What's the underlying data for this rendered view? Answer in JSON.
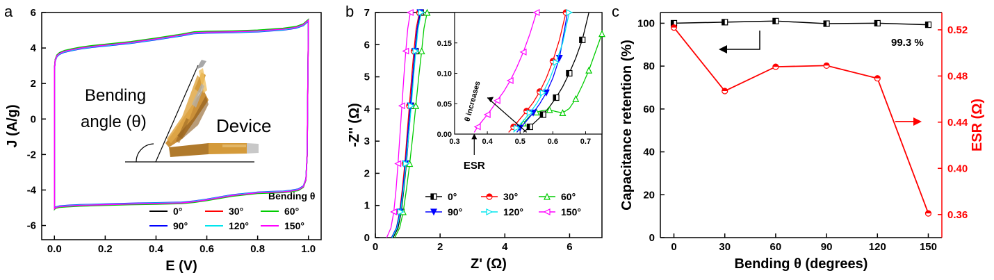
{
  "chart_data": [
    {
      "panel": "a",
      "type": "line",
      "xlabel": "E (V)",
      "ylabel": "J (A/g)",
      "xlim": [
        -0.05,
        1.05
      ],
      "ylim": [
        -6.8,
        6
      ],
      "xticks": [
        0.0,
        0.2,
        0.4,
        0.6,
        0.8,
        1.0
      ],
      "yticks": [
        -6,
        -4,
        -2,
        0,
        2,
        4,
        6
      ],
      "legend_title": "Bending θ",
      "legend_position": "bottom-right",
      "annotations": [
        "Bending",
        "angle (θ)",
        "Device"
      ],
      "cv_upper": {
        "x": [
          0.0,
          0.003,
          0.01,
          0.02,
          0.04,
          0.07,
          0.1,
          0.15,
          0.2,
          0.3,
          0.4,
          0.5,
          0.55,
          0.6,
          0.7,
          0.8,
          0.9,
          0.95,
          0.98,
          1.0
        ],
        "y": [
          2.8,
          3.3,
          3.55,
          3.68,
          3.8,
          3.9,
          3.98,
          4.08,
          4.15,
          4.3,
          4.5,
          4.72,
          4.85,
          4.88,
          4.9,
          4.95,
          5.05,
          5.15,
          5.3,
          5.55
        ]
      },
      "cv_lower": {
        "x": [
          1.0,
          0.995,
          0.99,
          0.98,
          0.96,
          0.93,
          0.9,
          0.85,
          0.8,
          0.7,
          0.6,
          0.55,
          0.5,
          0.4,
          0.3,
          0.2,
          0.1,
          0.05,
          0.02,
          0.005,
          0.0
        ],
        "y": [
          5.55,
          -2.0,
          -3.4,
          -3.8,
          -3.98,
          -4.05,
          -4.1,
          -4.12,
          -4.15,
          -4.3,
          -4.55,
          -4.65,
          -4.72,
          -4.75,
          -4.78,
          -4.82,
          -4.86,
          -4.9,
          -4.93,
          -4.98,
          -5.05
        ]
      },
      "series": [
        {
          "name": "0°",
          "color": "#000000",
          "offset": 0.0,
          "marker": "none"
        },
        {
          "name": "30°",
          "color": "#ff0000",
          "offset": 0.03,
          "marker": "none"
        },
        {
          "name": "60°",
          "color": "#00cc00",
          "offset": 0.06,
          "marker": "none"
        },
        {
          "name": "90°",
          "color": "#0000ff",
          "offset": -0.04,
          "marker": "none"
        },
        {
          "name": "120°",
          "color": "#00e5ee",
          "offset": -0.02,
          "marker": "none"
        },
        {
          "name": "150°",
          "color": "#ff00ff",
          "offset": 0.01,
          "marker": "none"
        }
      ]
    },
    {
      "panel": "b",
      "type": "scatter",
      "xlabel": "Z' (Ω)",
      "ylabel": "-Z'' (Ω)",
      "xlim": [
        0,
        7
      ],
      "ylim": [
        0,
        7
      ],
      "xticks": [
        0,
        2,
        4,
        6
      ],
      "yticks": [
        0,
        1,
        2,
        3,
        4,
        5,
        6,
        7
      ],
      "legend_position": "bottom-right",
      "series": [
        {
          "name": "0°",
          "color": "#000000",
          "x": [
            0.55,
            0.7,
            0.8,
            0.88,
            0.96,
            1.03,
            1.1,
            1.17,
            1.24,
            1.3,
            1.4
          ],
          "y": [
            0,
            0.3,
            0.8,
            1.5,
            2.3,
            3.2,
            4.1,
            5.0,
            5.8,
            6.5,
            7.0
          ]
        },
        {
          "name": "30°",
          "color": "#ff0000",
          "x": [
            0.5,
            0.65,
            0.75,
            0.83,
            0.91,
            0.98,
            1.05,
            1.12,
            1.19,
            1.26,
            1.36
          ],
          "y": [
            0,
            0.3,
            0.8,
            1.5,
            2.3,
            3.2,
            4.1,
            5.0,
            5.8,
            6.5,
            7.0
          ]
        },
        {
          "name": "60°",
          "color": "#00cc00",
          "x": [
            0.6,
            0.75,
            0.86,
            0.96,
            1.06,
            1.16,
            1.25,
            1.34,
            1.43,
            1.5,
            1.6
          ],
          "y": [
            0,
            0.3,
            0.8,
            1.5,
            2.3,
            3.2,
            4.1,
            5.0,
            5.8,
            6.5,
            7.0
          ]
        },
        {
          "name": "90°",
          "color": "#0000ff",
          "x": [
            0.5,
            0.65,
            0.76,
            0.85,
            0.93,
            1.0,
            1.08,
            1.15,
            1.22,
            1.29,
            1.38
          ],
          "y": [
            0,
            0.3,
            0.8,
            1.5,
            2.3,
            3.2,
            4.1,
            5.0,
            5.8,
            6.5,
            7.0
          ]
        },
        {
          "name": "120°",
          "color": "#00e5ee",
          "x": [
            0.52,
            0.67,
            0.78,
            0.87,
            0.95,
            1.03,
            1.11,
            1.18,
            1.25,
            1.32,
            1.42
          ],
          "y": [
            0,
            0.3,
            0.8,
            1.5,
            2.3,
            3.2,
            4.1,
            5.0,
            5.8,
            6.5,
            7.0
          ]
        },
        {
          "name": "150°",
          "color": "#ff00ff",
          "x": [
            0.35,
            0.48,
            0.57,
            0.64,
            0.7,
            0.76,
            0.82,
            0.88,
            0.94,
            1.0,
            1.08
          ],
          "y": [
            0,
            0.3,
            0.8,
            1.5,
            2.3,
            3.2,
            4.1,
            5.0,
            5.8,
            6.5,
            7.0
          ]
        }
      ],
      "inset": {
        "xlim": [
          0.3,
          0.75
        ],
        "ylim": [
          0,
          0.2
        ],
        "xticks": [
          0.3,
          0.4,
          0.5,
          0.6,
          0.7
        ],
        "yticks": [
          0.0,
          0.05,
          0.1,
          0.15
        ],
        "annotations": [
          "θ increases",
          "ESR"
        ],
        "series": [
          {
            "name": "0°",
            "color": "#000000",
            "x": [
              0.51,
              0.53,
              0.55,
              0.57,
              0.59,
              0.61,
              0.63,
              0.65,
              0.67,
              0.69,
              0.71
            ],
            "y": [
              0.003,
              0.012,
              0.022,
              0.032,
              0.045,
              0.06,
              0.078,
              0.1,
              0.125,
              0.155,
              0.2
            ]
          },
          {
            "name": "30°",
            "color": "#ff0000",
            "x": [
              0.465,
              0.48,
              0.5,
              0.52,
              0.54,
              0.56,
              0.58,
              0.6,
              0.62,
              0.64
            ],
            "y": [
              0.003,
              0.012,
              0.025,
              0.038,
              0.052,
              0.07,
              0.092,
              0.12,
              0.155,
              0.2
            ]
          },
          {
            "name": "60°",
            "color": "#00cc00",
            "x": [
              0.49,
              0.51,
              0.53,
              0.55,
              0.57,
              0.59,
              0.61,
              0.63,
              0.65,
              0.67,
              0.69,
              0.71,
              0.73,
              0.75
            ],
            "y": [
              0.003,
              0.018,
              0.03,
              0.036,
              0.039,
              0.04,
              0.037,
              0.035,
              0.042,
              0.058,
              0.08,
              0.105,
              0.135,
              0.165
            ]
          },
          {
            "name": "90°",
            "color": "#0000ff",
            "x": [
              0.49,
              0.5,
              0.52,
              0.54,
              0.56,
              0.58,
              0.6,
              0.62,
              0.645
            ],
            "y": [
              0.003,
              0.01,
              0.022,
              0.035,
              0.05,
              0.068,
              0.092,
              0.125,
              0.2
            ]
          },
          {
            "name": "120°",
            "color": "#00e5ee",
            "x": [
              0.48,
              0.49,
              0.51,
              0.53,
              0.55,
              0.57,
              0.59,
              0.61,
              0.63,
              0.65
            ],
            "y": [
              0.003,
              0.01,
              0.022,
              0.035,
              0.05,
              0.068,
              0.09,
              0.118,
              0.15,
              0.2
            ]
          },
          {
            "name": "150°",
            "color": "#ff00ff",
            "x": [
              0.36,
              0.37,
              0.385,
              0.4,
              0.415,
              0.43,
              0.45,
              0.47,
              0.49,
              0.51,
              0.53,
              0.55
            ],
            "y": [
              0.003,
              0.012,
              0.022,
              0.032,
              0.043,
              0.055,
              0.07,
              0.088,
              0.11,
              0.135,
              0.165,
              0.2
            ]
          }
        ]
      }
    },
    {
      "panel": "c",
      "type": "line",
      "xlabel": "Bending θ (degrees)",
      "ylabel": "Capacitance retention (%)",
      "y2label": "ESR (Ω)",
      "xlim": [
        -8,
        158
      ],
      "ylim": [
        0,
        105
      ],
      "y2lim": [
        0.34,
        0.535
      ],
      "xticks": [
        0,
        30,
        60,
        90,
        120,
        150
      ],
      "yticks": [
        0,
        20,
        40,
        60,
        80,
        100
      ],
      "y2ticks": [
        0.36,
        0.4,
        0.44,
        0.48,
        0.52
      ],
      "annotations": [
        "99.3 %"
      ],
      "series": [
        {
          "name": "Capacitance retention",
          "color": "#000000",
          "axis": "left",
          "x": [
            0,
            30,
            60,
            90,
            120,
            150
          ],
          "y": [
            100,
            100.5,
            101,
            99.8,
            100,
            99.3
          ]
        },
        {
          "name": "ESR",
          "color": "#ff0000",
          "axis": "right",
          "x": [
            0,
            30,
            60,
            90,
            120,
            150
          ],
          "y": [
            0.522,
            0.467,
            0.488,
            0.489,
            0.478,
            0.361
          ]
        }
      ]
    }
  ],
  "labels": {
    "panel_a": "a",
    "panel_b": "b",
    "panel_c": "c",
    "inset_label_angle1": "Bending",
    "inset_label_angle2": "angle (θ)",
    "inset_label_device": "Device",
    "legend_title_a": "Bending θ",
    "b_inset_note": "θ increases",
    "b_inset_esr": "ESR",
    "c_note": "99.3 %"
  },
  "colors": {
    "photo_amber": "#d49a3a",
    "photo_dark": "#8a5a1e",
    "photo_metal": "#a8a8a8"
  }
}
